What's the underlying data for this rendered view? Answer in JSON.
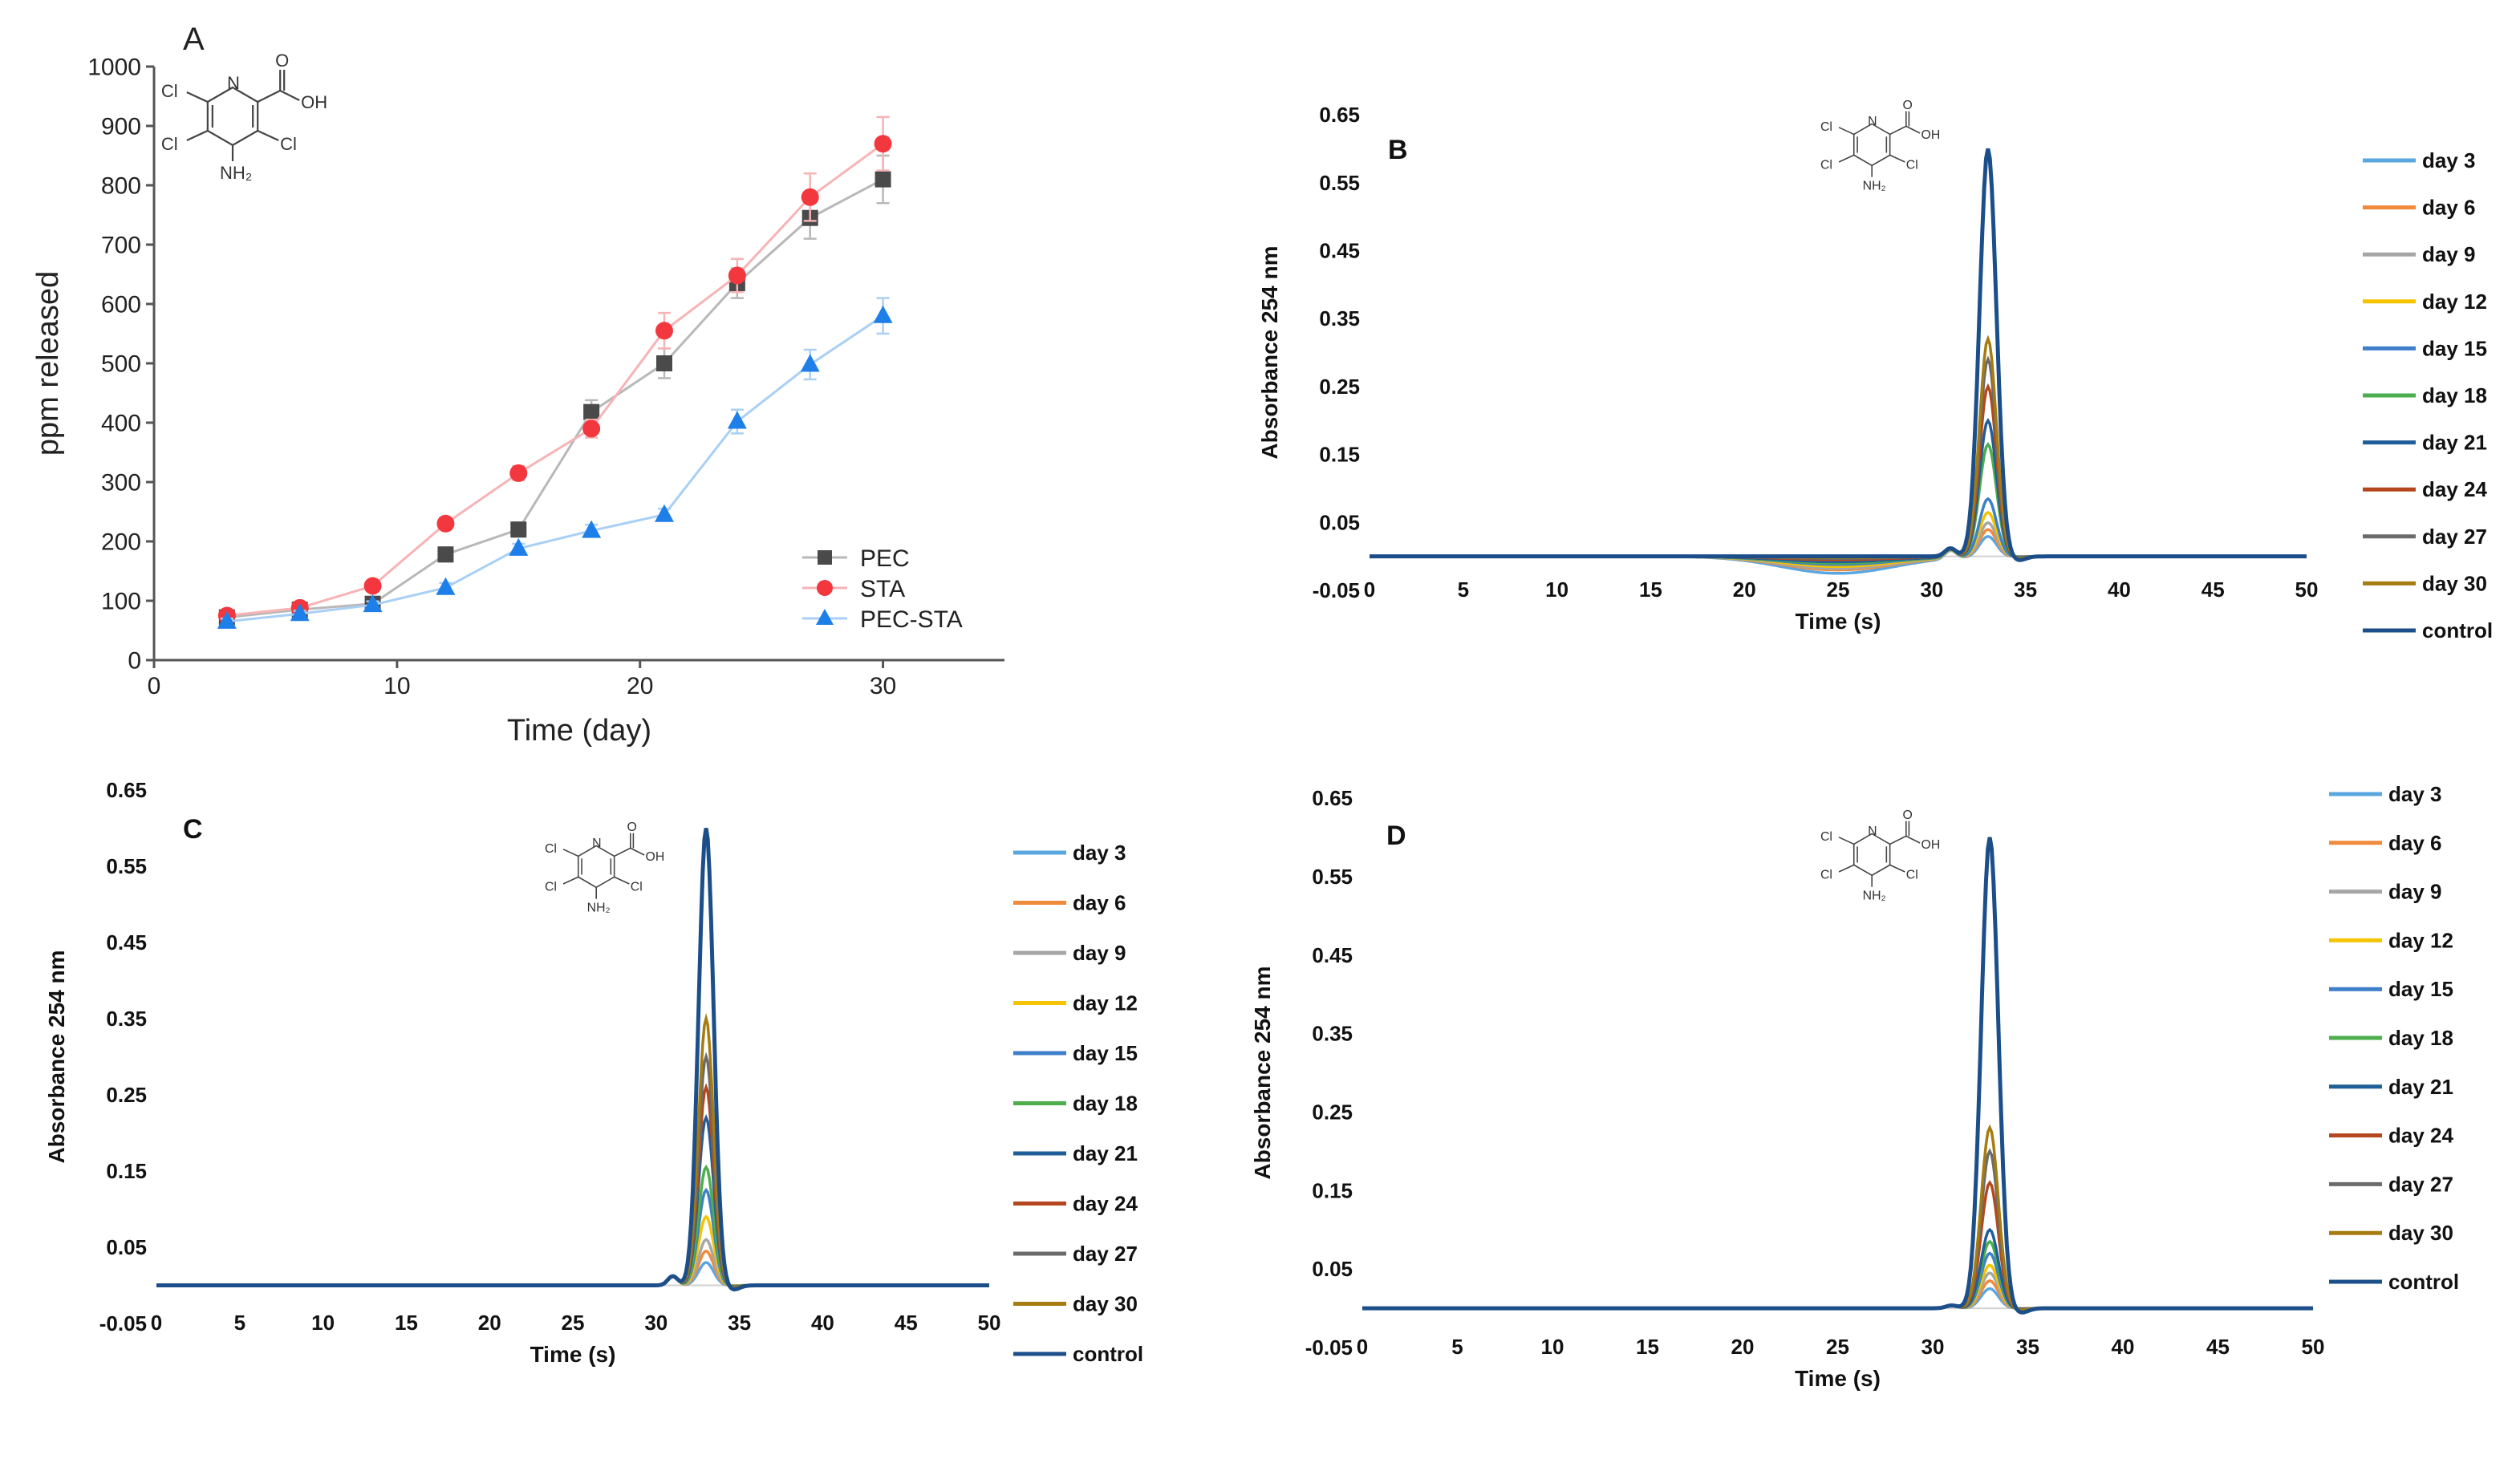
{
  "molecule": {
    "cl_top": "Cl",
    "cl_left": "Cl",
    "cl_right": "Cl",
    "ring_n": "N",
    "carbonyl_o": "O",
    "hydroxyl": "OH",
    "amine": "NH₂"
  },
  "chart_data": [
    {
      "panel": "A",
      "type": "line",
      "title": "",
      "xlabel": "Time (day)",
      "ylabel": "ppm released",
      "xlim": [
        0,
        35
      ],
      "ylim": [
        0,
        1000
      ],
      "xticks": [
        0,
        10,
        20,
        30
      ],
      "yticks": [
        0,
        100,
        200,
        300,
        400,
        500,
        600,
        700,
        800,
        900,
        1000
      ],
      "legend_position": "bottom-right",
      "x": [
        3,
        6,
        9,
        12,
        15,
        18,
        21,
        24,
        27,
        30
      ],
      "series": [
        {
          "name": "PEC",
          "color": "#4a4a4a",
          "line_color": "#b8b8b8",
          "marker": "square",
          "values": [
            72,
            85,
            95,
            178,
            220,
            418,
            500,
            635,
            745,
            810
          ],
          "errors": [
            8,
            6,
            7,
            12,
            12,
            20,
            25,
            25,
            35,
            40
          ]
        },
        {
          "name": "STA",
          "color": "#f2383e",
          "line_color": "#f7b3b5",
          "marker": "circle",
          "values": [
            75,
            88,
            125,
            230,
            315,
            390,
            555,
            648,
            780,
            870
          ],
          "errors": [
            6,
            6,
            8,
            10,
            12,
            15,
            30,
            28,
            40,
            45
          ]
        },
        {
          "name": "PEC-STA",
          "color": "#1e7fe8",
          "line_color": "#a9cff5",
          "marker": "triangle",
          "values": [
            65,
            78,
            93,
            122,
            188,
            218,
            245,
            402,
            498,
            580
          ],
          "errors": [
            5,
            5,
            6,
            8,
            8,
            10,
            10,
            20,
            25,
            30
          ]
        }
      ]
    },
    {
      "panel": "B",
      "type": "line",
      "title": "",
      "xlabel": "Time (s)",
      "ylabel": "Absorbance  254 nm",
      "xlim": [
        0,
        50
      ],
      "ylim": [
        -0.05,
        0.65
      ],
      "xticks": [
        0,
        5,
        10,
        15,
        20,
        25,
        30,
        35,
        40,
        45,
        50
      ],
      "yticks": [
        -0.05,
        0.05,
        0.15,
        0.25,
        0.35,
        0.45,
        0.55,
        0.65
      ],
      "legend_position": "right",
      "peak_time": 33,
      "shoulder_time": 31,
      "dip_time": 25,
      "series": [
        {
          "name": "day 3",
          "color": "#5aa7e0",
          "peak": 0.03,
          "dip": -0.025
        },
        {
          "name": "day 6",
          "color": "#f08a3c",
          "peak": 0.04,
          "dip": -0.02
        },
        {
          "name": "day 9",
          "color": "#a6a6a6",
          "peak": 0.05,
          "dip": -0.018
        },
        {
          "name": "day 12",
          "color": "#f5c400",
          "peak": 0.065,
          "dip": -0.015
        },
        {
          "name": "day 15",
          "color": "#3d7fc9",
          "peak": 0.085,
          "dip": -0.012
        },
        {
          "name": "day 18",
          "color": "#4cae4c",
          "peak": 0.165,
          "dip": -0.01
        },
        {
          "name": "day 21",
          "color": "#1f5f99",
          "peak": 0.2,
          "dip": -0.008
        },
        {
          "name": "day 24",
          "color": "#b5471f",
          "peak": 0.25,
          "dip": -0.005
        },
        {
          "name": "day 27",
          "color": "#6b6b6b",
          "peak": 0.29,
          "dip": -0.003
        },
        {
          "name": "day 30",
          "color": "#a67b10",
          "peak": 0.32,
          "dip": -0.002
        },
        {
          "name": "control",
          "color": "#1c4f8a",
          "peak": 0.6,
          "dip": 0.0
        }
      ]
    },
    {
      "panel": "C",
      "type": "line",
      "title": "",
      "xlabel": "Time (s)",
      "ylabel": "Absorbance 254 nm",
      "xlim": [
        0,
        50
      ],
      "ylim": [
        -0.05,
        0.65
      ],
      "xticks": [
        0,
        5,
        10,
        15,
        20,
        25,
        30,
        35,
        40,
        45,
        50
      ],
      "yticks": [
        -0.05,
        0.05,
        0.15,
        0.25,
        0.35,
        0.45,
        0.55,
        0.65
      ],
      "legend_position": "right",
      "peak_time": 33,
      "shoulder_time": 31,
      "dip_time": 25,
      "series": [
        {
          "name": "day 3",
          "color": "#5aa7e0",
          "peak": 0.03,
          "dip": 0
        },
        {
          "name": "day 6",
          "color": "#f08a3c",
          "peak": 0.045,
          "dip": 0
        },
        {
          "name": "day 9",
          "color": "#a6a6a6",
          "peak": 0.06,
          "dip": 0
        },
        {
          "name": "day 12",
          "color": "#f5c400",
          "peak": 0.09,
          "dip": 0
        },
        {
          "name": "day 15",
          "color": "#3d7fc9",
          "peak": 0.125,
          "dip": 0
        },
        {
          "name": "day 18",
          "color": "#4cae4c",
          "peak": 0.155,
          "dip": 0
        },
        {
          "name": "day 21",
          "color": "#1f5f99",
          "peak": 0.22,
          "dip": 0
        },
        {
          "name": "day 24",
          "color": "#b5471f",
          "peak": 0.26,
          "dip": 0
        },
        {
          "name": "day 27",
          "color": "#6b6b6b",
          "peak": 0.3,
          "dip": 0
        },
        {
          "name": "day 30",
          "color": "#a67b10",
          "peak": 0.35,
          "dip": 0
        },
        {
          "name": "control",
          "color": "#1c4f8a",
          "peak": 0.6,
          "dip": 0
        }
      ]
    },
    {
      "panel": "D",
      "type": "line",
      "title": "",
      "xlabel": "Time (s)",
      "ylabel": "Absorbance 254 nm",
      "xlim": [
        0,
        50
      ],
      "ylim": [
        -0.05,
        0.65
      ],
      "xticks": [
        0,
        5,
        10,
        15,
        20,
        25,
        30,
        35,
        40,
        45,
        50
      ],
      "yticks": [
        -0.05,
        0.05,
        0.15,
        0.25,
        0.35,
        0.45,
        0.55,
        0.65
      ],
      "legend_position": "right",
      "peak_time": 33,
      "shoulder_time": 31,
      "dip_time": 25,
      "series": [
        {
          "name": "day 3",
          "color": "#5aa7e0",
          "peak": 0.025,
          "dip": 0
        },
        {
          "name": "day 6",
          "color": "#f08a3c",
          "peak": 0.035,
          "dip": 0
        },
        {
          "name": "day 9",
          "color": "#a6a6a6",
          "peak": 0.045,
          "dip": 0
        },
        {
          "name": "day 12",
          "color": "#f5c400",
          "peak": 0.055,
          "dip": 0
        },
        {
          "name": "day 15",
          "color": "#3d7fc9",
          "peak": 0.07,
          "dip": 0
        },
        {
          "name": "day 18",
          "color": "#4cae4c",
          "peak": 0.085,
          "dip": 0
        },
        {
          "name": "day 21",
          "color": "#1f5f99",
          "peak": 0.1,
          "dip": 0
        },
        {
          "name": "day 24",
          "color": "#b5471f",
          "peak": 0.16,
          "dip": 0
        },
        {
          "name": "day 27",
          "color": "#6b6b6b",
          "peak": 0.2,
          "dip": 0
        },
        {
          "name": "day 30",
          "color": "#a67b10",
          "peak": 0.23,
          "dip": 0
        },
        {
          "name": "control",
          "color": "#1c4f8a",
          "peak": 0.6,
          "dip": 0
        }
      ]
    }
  ]
}
